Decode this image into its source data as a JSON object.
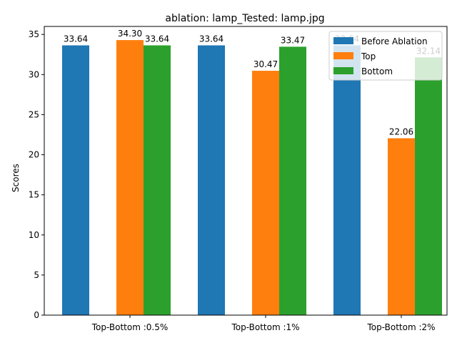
{
  "chart_data": {
    "type": "bar",
    "title": "ablation: lamp_Tested: lamp.jpg",
    "xlabel": "",
    "ylabel": "Scores",
    "ylim": [
      0,
      36
    ],
    "yticks": [
      0,
      5,
      10,
      15,
      20,
      25,
      30,
      35
    ],
    "categories": [
      "Top-Bottom :0.5%",
      "Top-Bottom :1%",
      "Top-Bottom :2%"
    ],
    "series": [
      {
        "name": "Before Ablation",
        "color": "#1f77b4",
        "values": [
          33.64,
          33.64,
          33.64
        ]
      },
      {
        "name": "Top",
        "color": "#ff7f0e",
        "values": [
          34.3,
          30.47,
          22.06
        ]
      },
      {
        "name": "Bottom",
        "color": "#2ca02c",
        "values": [
          33.64,
          33.47,
          32.14
        ]
      }
    ],
    "data_labels": [
      [
        "33.64",
        "33.64",
        "33.64"
      ],
      [
        "34.30",
        "30.47",
        "22.06"
      ],
      [
        "33.64",
        "33.47",
        "32.14"
      ]
    ],
    "legend_position": "top-right",
    "grid": false
  }
}
